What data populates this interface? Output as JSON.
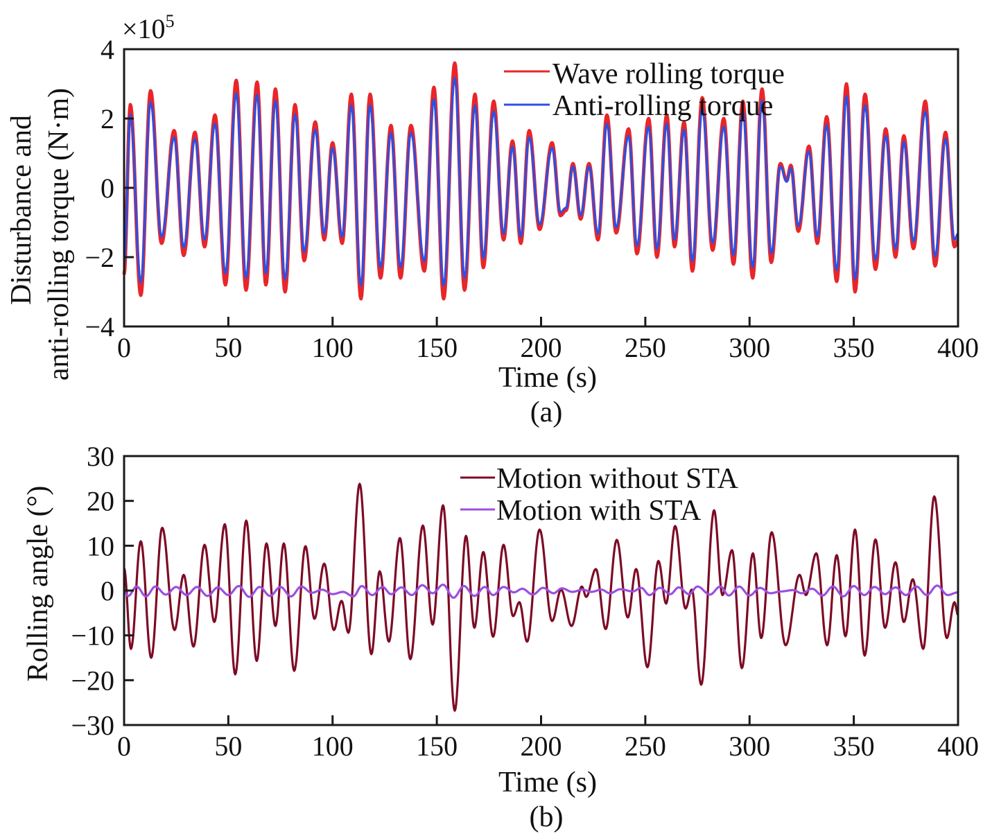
{
  "chart_data": [
    {
      "type": "line",
      "panel_label": "(a)",
      "xlabel": "Time (s)",
      "ylabel_lines": [
        "Disturbance and",
        "anti-rolling torque (N·m)"
      ],
      "y_multiplier_label": "×10",
      "y_multiplier_exp": "5",
      "xlim": [
        0,
        400
      ],
      "ylim": [
        -4,
        4
      ],
      "xticks": [
        0,
        50,
        100,
        150,
        200,
        250,
        300,
        350,
        400
      ],
      "yticks": [
        -4,
        -2,
        0,
        2,
        4
      ],
      "ytick_labels": [
        "−4",
        "−2",
        "0",
        "2",
        "4"
      ],
      "legend_position": "top-center",
      "grid": false,
      "series": [
        {
          "name": "Wave rolling torque",
          "color": "#e8262a",
          "extrema": [
            [
              0,
              -2.5
            ],
            [
              3,
              2.4
            ],
            [
              8,
              -3.1
            ],
            [
              12.7,
              2.8
            ],
            [
              18,
              -1.6
            ],
            [
              24,
              1.65
            ],
            [
              28.6,
              -1.95
            ],
            [
              34,
              1.6
            ],
            [
              38.6,
              -1.7
            ],
            [
              43.6,
              2.1
            ],
            [
              48.6,
              -2.8
            ],
            [
              53.8,
              3.1
            ],
            [
              58.5,
              -2.95
            ],
            [
              63.8,
              3.05
            ],
            [
              68,
              -2.8
            ],
            [
              72.6,
              2.85
            ],
            [
              77.2,
              -3.0
            ],
            [
              82,
              2.4
            ],
            [
              86.4,
              -2.1
            ],
            [
              91.7,
              1.9
            ],
            [
              96,
              -1.5
            ],
            [
              100,
              1.3
            ],
            [
              104.6,
              -1.6
            ],
            [
              109,
              2.7
            ],
            [
              113.6,
              -3.2
            ],
            [
              118,
              2.7
            ],
            [
              123,
              -2.6
            ],
            [
              128,
              1.8
            ],
            [
              132.6,
              -2.6
            ],
            [
              137.6,
              1.8
            ],
            [
              144,
              -2.4
            ],
            [
              148.6,
              2.9
            ],
            [
              153.3,
              -3.2
            ],
            [
              158.6,
              3.6
            ],
            [
              163.3,
              -2.95
            ],
            [
              168.3,
              2.7
            ],
            [
              172.3,
              -2.3
            ],
            [
              177.3,
              2.5
            ],
            [
              182,
              -1.5
            ],
            [
              186.3,
              1.35
            ],
            [
              190.3,
              -1.6
            ],
            [
              194.3,
              1.65
            ],
            [
              199.3,
              -1.2
            ],
            [
              205.3,
              1.3
            ],
            [
              209.3,
              -0.8
            ],
            [
              212,
              -0.65
            ],
            [
              215.3,
              0.7
            ],
            [
              219,
              -0.9
            ],
            [
              223,
              0.7
            ],
            [
              227.3,
              -1.5
            ],
            [
              231.6,
              2.1
            ],
            [
              236,
              -1.3
            ],
            [
              242,
              1.7
            ],
            [
              246,
              -1.9
            ],
            [
              251.6,
              2.0
            ],
            [
              255.6,
              -2.0
            ],
            [
              260.3,
              2.1
            ],
            [
              264,
              -1.7
            ],
            [
              268.6,
              1.9
            ],
            [
              272.6,
              -2.4
            ],
            [
              277.3,
              2.6
            ],
            [
              282.3,
              -1.8
            ],
            [
              287.6,
              2.0
            ],
            [
              292.3,
              -2.2
            ],
            [
              296.8,
              2.5
            ],
            [
              301.5,
              -2.6
            ],
            [
              306,
              2.85
            ],
            [
              310.4,
              -2.15
            ],
            [
              314.8,
              0.7
            ],
            [
              317.8,
              0.2
            ],
            [
              319.8,
              0.65
            ],
            [
              323.4,
              -1.25
            ],
            [
              328.5,
              1.2
            ],
            [
              332.5,
              -1.6
            ],
            [
              337,
              2.05
            ],
            [
              341.8,
              -2.7
            ],
            [
              346.5,
              3.0
            ],
            [
              350.6,
              -3.0
            ],
            [
              355.4,
              2.7
            ],
            [
              360.4,
              -2.35
            ],
            [
              365.3,
              1.7
            ],
            [
              370,
              -2.0
            ],
            [
              374,
              1.5
            ],
            [
              378.6,
              -1.75
            ],
            [
              384.3,
              2.5
            ],
            [
              389,
              -2.25
            ],
            [
              394,
              1.6
            ],
            [
              398.3,
              -1.7
            ],
            [
              400,
              -1.5
            ]
          ]
        },
        {
          "name": "Anti-rolling torque",
          "color": "#2f4fe0",
          "scale_of_wave_torque": 0.88
        }
      ]
    },
    {
      "type": "line",
      "panel_label": "(b)",
      "xlabel": "Time (s)",
      "ylabel": "Rolling angle (°)",
      "xlim": [
        0,
        400
      ],
      "ylim": [
        -30,
        30
      ],
      "xticks": [
        0,
        50,
        100,
        150,
        200,
        250,
        300,
        350,
        400
      ],
      "yticks": [
        -30,
        -20,
        -10,
        0,
        10,
        20,
        30
      ],
      "ytick_labels": [
        "−30",
        "−20",
        "−10",
        "0",
        "10",
        "20",
        "30"
      ],
      "legend_position": "top-center",
      "grid": false,
      "series": [
        {
          "name": "Motion without STA",
          "color": "#7d0a25",
          "extrema": [
            [
              0,
              5
            ],
            [
              3.3,
              -13
            ],
            [
              8,
              11
            ],
            [
              13,
              -15
            ],
            [
              18.3,
              14
            ],
            [
              24.2,
              -8.8
            ],
            [
              28.6,
              3.5
            ],
            [
              33.3,
              -12.5
            ],
            [
              38.6,
              10.2
            ],
            [
              43.3,
              -7
            ],
            [
              48.3,
              14.8
            ],
            [
              53.3,
              -18.7
            ],
            [
              58.6,
              15.6
            ],
            [
              63.6,
              -15.7
            ],
            [
              68.3,
              10.5
            ],
            [
              72.6,
              -7.9
            ],
            [
              76.6,
              10.5
            ],
            [
              81.6,
              -17.9
            ],
            [
              87,
              9.9
            ],
            [
              91.3,
              -6.3
            ],
            [
              96,
              6
            ],
            [
              100.6,
              -8.8
            ],
            [
              104.3,
              -2.3
            ],
            [
              107.6,
              -9.4
            ],
            [
              113,
              23.8
            ],
            [
              118.6,
              -14.2
            ],
            [
              122.6,
              4.3
            ],
            [
              127,
              -11.4
            ],
            [
              132.3,
              11.7
            ],
            [
              137.3,
              -15.3
            ],
            [
              143.3,
              14.5
            ],
            [
              148,
              -7.6
            ],
            [
              153,
              19
            ],
            [
              158.6,
              -26.8
            ],
            [
              164,
              12.2
            ],
            [
              168,
              -8.3
            ],
            [
              172.3,
              8.6
            ],
            [
              177,
              -10.3
            ],
            [
              182,
              10.2
            ],
            [
              186.6,
              -5.7
            ],
            [
              189.6,
              -2.6
            ],
            [
              193.3,
              -11.4
            ],
            [
              199.3,
              13.6
            ],
            [
              205.3,
              -6.8
            ],
            [
              209.6,
              0.2
            ],
            [
              214.6,
              -7.9
            ],
            [
              219.6,
              0.9
            ],
            [
              221.6,
              -1.4
            ],
            [
              226.3,
              4.8
            ],
            [
              231,
              -8.6
            ],
            [
              236.3,
              11.3
            ],
            [
              241.6,
              -6
            ],
            [
              245.6,
              4.8
            ],
            [
              251,
              -17.1
            ],
            [
              256.3,
              6.6
            ],
            [
              260,
              -2.9
            ],
            [
              264.3,
              14.4
            ],
            [
              269.3,
              -4
            ],
            [
              272.3,
              0.2
            ],
            [
              276.8,
              -21
            ],
            [
              283,
              17.9
            ],
            [
              287,
              -1
            ],
            [
              291.6,
              9
            ],
            [
              296.3,
              -17.3
            ],
            [
              301.6,
              8.3
            ],
            [
              305.6,
              -10.6
            ],
            [
              310.6,
              13
            ],
            [
              317.3,
              -12.2
            ],
            [
              324,
              3.5
            ],
            [
              327,
              -1
            ],
            [
              332,
              8.3
            ],
            [
              337.2,
              -12.2
            ],
            [
              341.8,
              7.9
            ],
            [
              346,
              -10.2
            ],
            [
              350.6,
              13.6
            ],
            [
              355.2,
              -14.5
            ],
            [
              360.4,
              11.4
            ],
            [
              365,
              -8.3
            ],
            [
              370,
              6.3
            ],
            [
              374,
              -7
            ],
            [
              378.3,
              2.5
            ],
            [
              383.3,
              -13
            ],
            [
              388.6,
              21
            ],
            [
              394.6,
              -10.6
            ],
            [
              398.3,
              -2.6
            ],
            [
              400,
              -5.5
            ]
          ]
        },
        {
          "name": "Motion with STA",
          "color": "#9b4fe0",
          "extrema": [
            [
              0,
              -0.3
            ],
            [
              2,
              -1.2
            ],
            [
              6,
              0.9
            ],
            [
              10.5,
              -1.3
            ],
            [
              15,
              0.9
            ],
            [
              20,
              -0.9
            ],
            [
              25,
              0.8
            ],
            [
              30,
              -1.0
            ],
            [
              35,
              0.8
            ],
            [
              40,
              -1.2
            ],
            [
              45,
              0.7
            ],
            [
              50,
              -1.0
            ],
            [
              55,
              1.0
            ],
            [
              60,
              -1.4
            ],
            [
              65,
              0.8
            ],
            [
              70,
              -1.2
            ],
            [
              75,
              0.8
            ],
            [
              80,
              -1.3
            ],
            [
              85,
              0.9
            ],
            [
              90,
              -0.5
            ],
            [
              95,
              0.2
            ],
            [
              100,
              -0.8
            ],
            [
              105,
              -0.3
            ],
            [
              110,
              -1.3
            ],
            [
              114,
              1.0
            ],
            [
              119,
              -1.0
            ],
            [
              124,
              0.8
            ],
            [
              128,
              -0.8
            ],
            [
              133,
              0.7
            ],
            [
              138,
              -1.0
            ],
            [
              143,
              1.2
            ],
            [
              148,
              -0.6
            ],
            [
              153,
              1.3
            ],
            [
              158,
              -1.6
            ],
            [
              163,
              1.0
            ],
            [
              168,
              -1.2
            ],
            [
              173,
              0.8
            ],
            [
              177,
              -1.0
            ],
            [
              182,
              0.8
            ],
            [
              187,
              -0.4
            ],
            [
              191,
              0.4
            ],
            [
              196,
              -0.9
            ],
            [
              201,
              0.6
            ],
            [
              206,
              -0.6
            ],
            [
              210,
              0.5
            ],
            [
              215,
              -0.3
            ],
            [
              220,
              0.2
            ],
            [
              224,
              -0.3
            ],
            [
              229,
              0.2
            ],
            [
              233,
              -0.6
            ],
            [
              238,
              0.3
            ],
            [
              244,
              -0.2
            ],
            [
              248,
              0.6
            ],
            [
              252,
              -1.0
            ],
            [
              257,
              0.6
            ],
            [
              262,
              -0.8
            ],
            [
              266,
              0.7
            ],
            [
              271,
              -0.8
            ],
            [
              275,
              0.9
            ],
            [
              281,
              -0.9
            ],
            [
              286,
              0.9
            ],
            [
              290,
              -1.1
            ],
            [
              295,
              0.9
            ],
            [
              300,
              -1.1
            ],
            [
              305,
              0.6
            ],
            [
              310,
              -0.6
            ],
            [
              315,
              -0.2
            ],
            [
              321,
              0.1
            ],
            [
              325,
              -0.6
            ],
            [
              330,
              0.4
            ],
            [
              335,
              -1.1
            ],
            [
              340,
              0.9
            ],
            [
              345,
              -1.3
            ],
            [
              350,
              1.0
            ],
            [
              355,
              -1.0
            ],
            [
              360,
              0.8
            ],
            [
              365,
              -0.8
            ],
            [
              370,
              0.7
            ],
            [
              375,
              -1.0
            ],
            [
              380,
              0.9
            ],
            [
              385,
              -1.0
            ],
            [
              390,
              1.1
            ],
            [
              395,
              -1.0
            ],
            [
              400,
              -0.4
            ]
          ]
        }
      ]
    }
  ]
}
